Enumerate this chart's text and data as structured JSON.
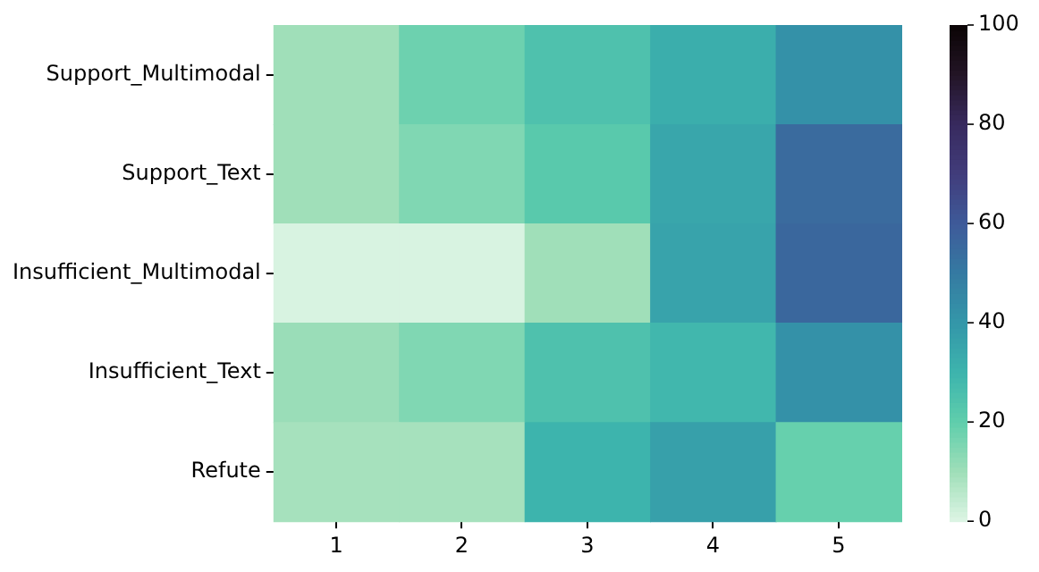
{
  "chart_data": {
    "type": "heatmap",
    "categories": [
      "1",
      "2",
      "3",
      "4",
      "5"
    ],
    "y_categories": [
      "Support_Multimodal",
      "Support_Text",
      "Insufficient_Multimodal",
      "Insufficient_Text",
      "Refute"
    ],
    "cells": [
      [
        10,
        18,
        25,
        32,
        42
      ],
      [
        10,
        15,
        22,
        35,
        55
      ],
      [
        1,
        1,
        10,
        36,
        56
      ],
      [
        11,
        15,
        25,
        29,
        42
      ],
      [
        9,
        9,
        30,
        37,
        19
      ]
    ],
    "clim": [
      0,
      100
    ],
    "cticks": [
      0,
      20,
      40,
      60,
      80,
      100
    ]
  }
}
